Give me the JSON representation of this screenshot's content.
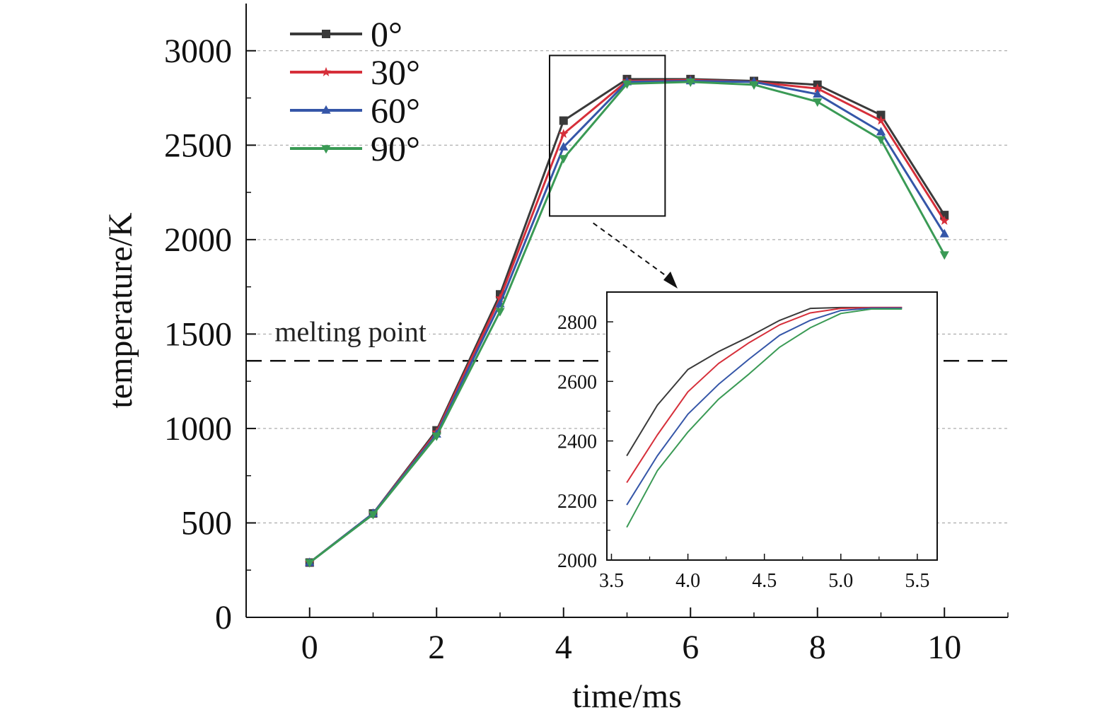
{
  "chart_data": [
    {
      "type": "line",
      "xlabel": "time/ms",
      "ylabel": "temperature/K",
      "xlim": [
        -1,
        11
      ],
      "ylim": [
        0,
        3250
      ],
      "xticks": [
        0,
        2,
        4,
        6,
        8,
        10
      ],
      "xtick_labels": [
        "0",
        "2",
        "4",
        "6",
        "8",
        "10"
      ],
      "yticks": [
        0,
        500,
        1000,
        1500,
        2000,
        2500,
        3000
      ],
      "ytick_labels": [
        "0",
        "500",
        "1000",
        "1500",
        "2000",
        "2500",
        "3000"
      ],
      "grid": "horizontal dashed",
      "legend": "top-left",
      "x": [
        0,
        1,
        2,
        3,
        4,
        5,
        6,
        7,
        8,
        9,
        10
      ],
      "series": [
        {
          "name": "0°",
          "color": "#3a3a3a",
          "marker": "square",
          "values": [
            290,
            550,
            990,
            1710,
            2630,
            2850,
            2850,
            2840,
            2820,
            2660,
            2130
          ]
        },
        {
          "name": "30°",
          "color": "#d62f3a",
          "marker": "star",
          "values": [
            290,
            550,
            980,
            1690,
            2560,
            2840,
            2845,
            2835,
            2800,
            2630,
            2100
          ]
        },
        {
          "name": "60°",
          "color": "#3556a8",
          "marker": "triangle-up",
          "values": [
            290,
            550,
            970,
            1660,
            2490,
            2835,
            2840,
            2835,
            2770,
            2570,
            2030
          ]
        },
        {
          "name": "90°",
          "color": "#3a9a55",
          "marker": "triangle-down",
          "values": [
            290,
            545,
            960,
            1620,
            2430,
            2825,
            2835,
            2820,
            2730,
            2530,
            1920
          ]
        }
      ],
      "reference_line": {
        "label": "melting point",
        "value": 1358
      },
      "zoom_box": {
        "x": [
          3.78,
          5.6
        ],
        "y": [
          2125,
          2975
        ]
      }
    },
    {
      "type": "line",
      "inset": true,
      "xlim": [
        3.47,
        5.63
      ],
      "ylim": [
        2000,
        2900
      ],
      "xticks": [
        3.5,
        4.0,
        4.5,
        5.0,
        5.5
      ],
      "xtick_labels": [
        "3.5",
        "4.0",
        "4.5",
        "5.0",
        "5.5"
      ],
      "yticks": [
        2000,
        2200,
        2400,
        2600,
        2800
      ],
      "ytick_labels": [
        "2000",
        "2200",
        "2400",
        "2600",
        "2800"
      ],
      "series": [
        {
          "name": "0°",
          "color": "#3a3a3a",
          "x": [
            3.6,
            3.8,
            4.0,
            4.2,
            4.4,
            4.6,
            4.8,
            5.0,
            5.2,
            5.4
          ],
          "values": [
            2350,
            2520,
            2640,
            2700,
            2750,
            2805,
            2845,
            2848,
            2848,
            2848
          ]
        },
        {
          "name": "30°",
          "color": "#d62f3a",
          "x": [
            3.6,
            3.8,
            4.0,
            4.2,
            4.4,
            4.6,
            4.8,
            5.0,
            5.2,
            5.4
          ],
          "values": [
            2260,
            2420,
            2565,
            2660,
            2730,
            2790,
            2830,
            2845,
            2848,
            2848
          ]
        },
        {
          "name": "60°",
          "color": "#3556a8",
          "x": [
            3.6,
            3.8,
            4.0,
            4.2,
            4.4,
            4.6,
            4.8,
            5.0,
            5.2,
            5.4
          ],
          "values": [
            2185,
            2350,
            2490,
            2590,
            2675,
            2755,
            2805,
            2838,
            2846,
            2846
          ]
        },
        {
          "name": "90°",
          "color": "#3a9a55",
          "x": [
            3.6,
            3.8,
            4.0,
            4.2,
            4.4,
            4.6,
            4.8,
            5.0,
            5.2,
            5.4
          ],
          "values": [
            2110,
            2300,
            2430,
            2540,
            2625,
            2715,
            2780,
            2828,
            2843,
            2843
          ]
        }
      ]
    }
  ]
}
